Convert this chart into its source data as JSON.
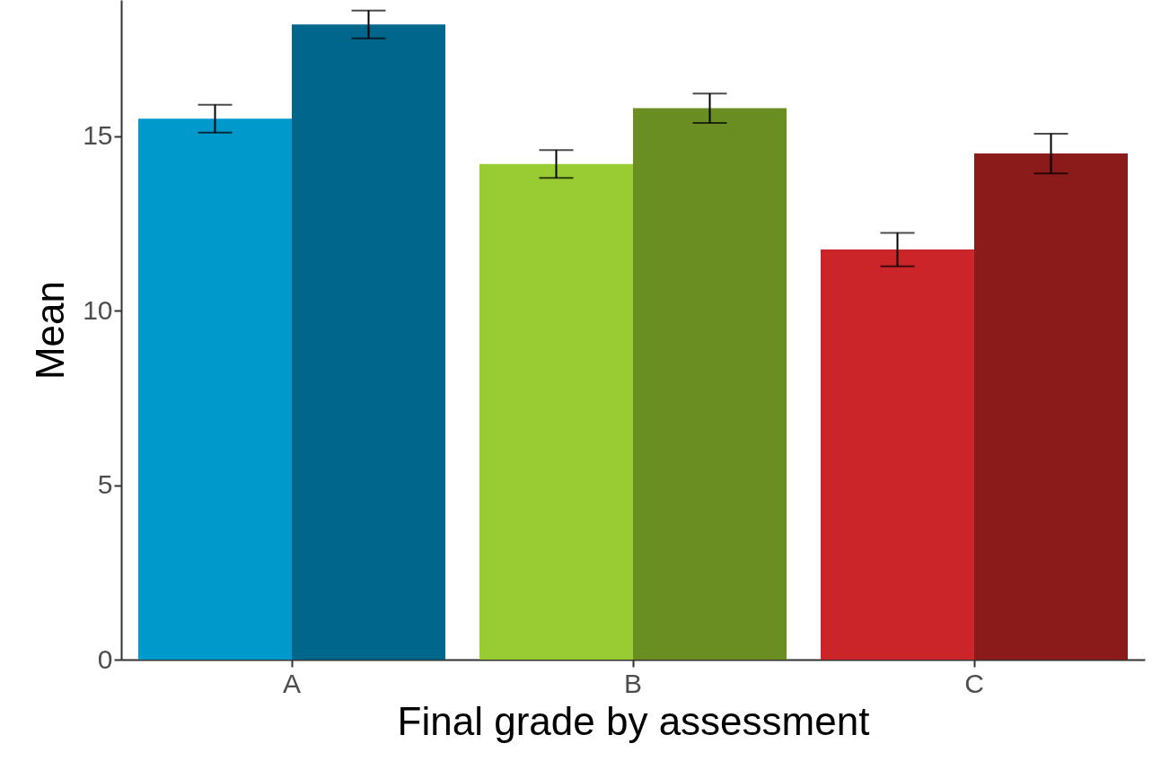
{
  "chart_data": {
    "type": "bar",
    "xlabel": "Final grade by assessment",
    "ylabel": "Mean",
    "categories": [
      "A",
      "B",
      "C"
    ],
    "ylim": [
      0,
      18.9
    ],
    "yticks": [
      0,
      5,
      10,
      15
    ],
    "series": [
      {
        "colors": [
          "#0099cc",
          "#99cc33",
          "#cc2529"
        ],
        "values": [
          15.5,
          14.2,
          11.75
        ],
        "errors": [
          0.4,
          0.4,
          0.48
        ]
      },
      {
        "colors": [
          "#00668b",
          "#6b8e23",
          "#8b1a1a"
        ],
        "values": [
          18.2,
          15.8,
          14.5
        ],
        "errors": [
          0.4,
          0.42,
          0.57
        ]
      }
    ]
  }
}
